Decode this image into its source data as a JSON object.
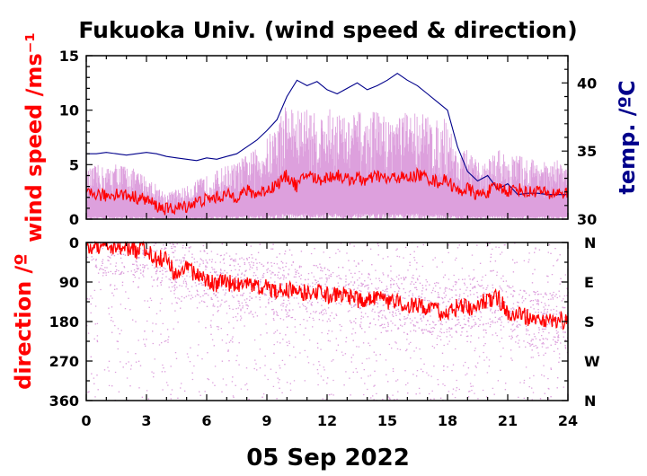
{
  "chart_data": [
    {
      "type": "line",
      "title": "Fukuoka Univ. (wind speed & direction)",
      "xlabel": "05 Sep 2022",
      "xlim": [
        0,
        24
      ],
      "xticks": [
        "0",
        "3",
        "6",
        "9",
        "12",
        "15",
        "18",
        "21",
        "24"
      ],
      "ylabel": "wind speed /ms⁻¹",
      "ylim": [
        0,
        15
      ],
      "yticks": [
        "0",
        "5",
        "10",
        "15"
      ],
      "y2label": "temp. /ºC",
      "y2lim": [
        30,
        42
      ],
      "y2ticks": [
        "30",
        "35",
        "40"
      ],
      "colors": {
        "mean": "#ff0000",
        "gust": "#dda0dd",
        "temp": "#00008b"
      },
      "series": [
        {
          "role": "mean wind speed",
          "x": [
            0,
            0.5,
            1,
            1.5,
            2,
            2.5,
            3,
            3.5,
            4,
            4.5,
            5,
            5.5,
            6,
            6.5,
            7,
            7.5,
            8,
            8.5,
            9,
            9.5,
            10,
            10.5,
            11,
            11.5,
            12,
            12.5,
            13,
            13.5,
            14,
            14.5,
            15,
            15.5,
            16,
            16.5,
            17,
            17.5,
            18,
            18.5,
            19,
            19.5,
            20,
            20.5,
            21,
            21.5,
            22,
            22.5,
            23,
            23.5,
            24
          ],
          "values": [
            2.2,
            2.3,
            2.1,
            2.4,
            2.2,
            2.0,
            1.8,
            1.2,
            0.9,
            1.0,
            1.2,
            1.6,
            1.8,
            2.0,
            2.2,
            2.1,
            2.6,
            2.3,
            2.7,
            3.2,
            4.0,
            3.0,
            4.2,
            3.6,
            3.8,
            4.1,
            3.6,
            3.8,
            3.5,
            4.0,
            3.6,
            3.9,
            3.7,
            4.1,
            3.8,
            3.4,
            3.6,
            2.5,
            2.8,
            2.2,
            2.5,
            3.0,
            2.6,
            2.8,
            2.4,
            2.7,
            2.2,
            2.5,
            2.3
          ]
        },
        {
          "role": "gust envelope",
          "x": [
            0,
            0.5,
            1,
            1.5,
            2,
            2.5,
            3,
            3.5,
            4,
            4.5,
            5,
            5.5,
            6,
            6.5,
            7,
            7.5,
            8,
            8.5,
            9,
            9.5,
            10,
            10.5,
            11,
            11.5,
            12,
            12.5,
            13,
            13.5,
            14,
            14.5,
            15,
            15.5,
            16,
            16.5,
            17,
            17.5,
            18,
            18.5,
            19,
            19.5,
            20,
            20.5,
            21,
            21.5,
            22,
            22.5,
            23,
            23.5,
            24
          ],
          "values": [
            4.5,
            5.0,
            4.8,
            5.2,
            5.0,
            4.5,
            4.0,
            3.2,
            2.4,
            2.8,
            3.0,
            3.6,
            4.0,
            4.5,
            5.0,
            5.2,
            6.0,
            6.5,
            7.5,
            9.0,
            11.0,
            10.0,
            10.5,
            9.5,
            10.0,
            10.5,
            9.0,
            10.2,
            9.0,
            10.5,
            9.2,
            10.0,
            9.8,
            10.2,
            9.6,
            9.0,
            9.5,
            6.0,
            6.5,
            5.2,
            5.5,
            6.5,
            5.8,
            6.0,
            5.5,
            5.8,
            5.0,
            5.5,
            5.0
          ]
        },
        {
          "role": "temperature",
          "axis": "y2",
          "x": [
            0,
            0.5,
            1,
            1.5,
            2,
            2.5,
            3,
            3.5,
            4,
            4.5,
            5,
            5.5,
            6,
            6.5,
            7,
            7.5,
            8,
            8.5,
            9,
            9.5,
            10,
            10.5,
            11,
            11.5,
            12,
            12.5,
            13,
            13.5,
            14,
            14.5,
            15,
            15.5,
            16,
            16.5,
            17,
            17.5,
            18,
            18.5,
            19,
            19.5,
            20,
            20.5,
            21,
            21.5,
            22,
            22.5,
            23,
            23.5,
            24
          ],
          "values": [
            34.8,
            34.8,
            34.9,
            34.8,
            34.7,
            34.8,
            34.9,
            34.8,
            34.6,
            34.5,
            34.4,
            34.3,
            34.5,
            34.4,
            34.6,
            34.8,
            35.3,
            35.8,
            36.5,
            37.3,
            39.0,
            40.2,
            39.8,
            40.1,
            39.5,
            39.2,
            39.6,
            40.0,
            39.5,
            39.8,
            40.2,
            40.7,
            40.2,
            39.8,
            39.2,
            38.6,
            38.0,
            35.3,
            33.5,
            32.8,
            33.2,
            32.2,
            32.6,
            31.8,
            31.9,
            31.9,
            31.8,
            31.8,
            31.8
          ]
        }
      ]
    },
    {
      "type": "scatter",
      "xlabel": "05 Sep 2022",
      "xlim": [
        0,
        24
      ],
      "xticks": [
        "0",
        "3",
        "6",
        "9",
        "12",
        "15",
        "18",
        "21",
        "24"
      ],
      "ylabel": "direction /º",
      "ylim": [
        0,
        360
      ],
      "yticks": [
        "0",
        "90",
        "180",
        "270",
        "360"
      ],
      "y2ticks": [
        "N",
        "E",
        "S",
        "W",
        "N"
      ],
      "colors": {
        "mean": "#ff0000",
        "scatter": "#dda0dd"
      },
      "series": [
        {
          "role": "mean direction",
          "x": [
            0,
            0.5,
            1,
            1.5,
            2,
            2.5,
            3,
            3.5,
            4,
            4.5,
            5,
            5.5,
            6,
            6.5,
            7,
            7.5,
            8,
            8.5,
            9,
            9.5,
            10,
            10.5,
            11,
            11.5,
            12,
            12.5,
            13,
            13.5,
            14,
            14.5,
            15,
            15.5,
            16,
            16.5,
            17,
            17.5,
            18,
            18.5,
            19,
            19.5,
            20,
            20.5,
            21,
            21.5,
            22,
            22.5,
            23,
            23.5,
            24
          ],
          "values": [
            10,
            8,
            15,
            5,
            12,
            20,
            10,
            40,
            30,
            80,
            60,
            75,
            85,
            95,
            90,
            100,
            95,
            105,
            100,
            110,
            105,
            110,
            115,
            110,
            120,
            115,
            125,
            130,
            135,
            125,
            140,
            135,
            145,
            140,
            150,
            155,
            165,
            145,
            150,
            140,
            130,
            125,
            160,
            165,
            170,
            175,
            180,
            175,
            180
          ]
        }
      ]
    }
  ]
}
